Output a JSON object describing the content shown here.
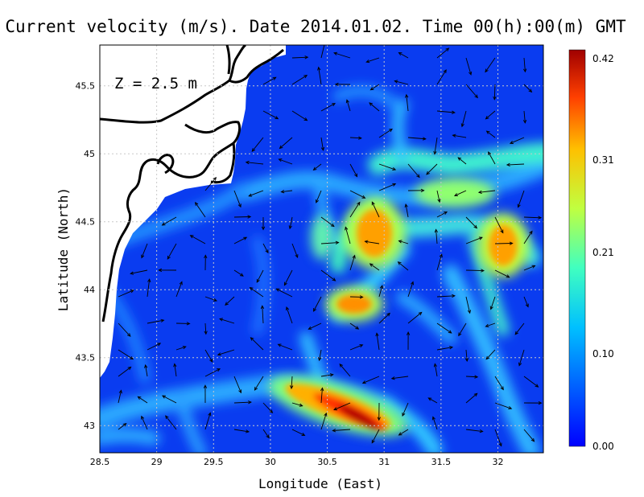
{
  "title": "Current velocity (m/s). Date 2014.01.02. Time 00(h):00(m) GMT",
  "depth_label": "Z = 2.5 m",
  "xlabel": "Longitude (East)",
  "ylabel": "Latitude (North)",
  "colors": {
    "land": "#ffffff",
    "coastline": "#000000",
    "grid": "#b0b0b0",
    "scale": [
      "#0000ff",
      "#0060ff",
      "#00c0ff",
      "#40ffc0",
      "#c0ff40",
      "#ffc000",
      "#ff4000",
      "#a00000"
    ]
  },
  "chart_data": {
    "type": "heatmap",
    "title": "Current velocity (m/s). Date 2014.01.02. Time 00(h):00(m) GMT",
    "xlabel": "Longitude (East)",
    "ylabel": "Latitude (North)",
    "xlim": [
      28.5,
      32.4
    ],
    "ylim": [
      42.8,
      45.8
    ],
    "xticks": [
      "28.5",
      "29",
      "29.5",
      "30",
      "30.5",
      "31",
      "31.5",
      "32"
    ],
    "yticks": [
      "43",
      "43.5",
      "44",
      "44.5",
      "45",
      "45.5"
    ],
    "grid": true,
    "colorbar": {
      "label": "m/s",
      "range": [
        0.0,
        0.42
      ],
      "ticks": [
        "0.00",
        "0.10",
        "0.21",
        "0.31",
        "0.42"
      ]
    },
    "speed_features": [
      {
        "lon": 30.85,
        "lat": 43.05,
        "speed": 0.42
      },
      {
        "lon": 30.55,
        "lat": 43.2,
        "speed": 0.38
      },
      {
        "lon": 30.75,
        "lat": 44.5,
        "speed": 0.33
      },
      {
        "lon": 30.65,
        "lat": 43.9,
        "speed": 0.33
      },
      {
        "lon": 32.05,
        "lat": 44.3,
        "speed": 0.3
      },
      {
        "lon": 31.6,
        "lat": 44.6,
        "speed": 0.22
      },
      {
        "lon": 30.15,
        "lat": 44.25,
        "speed": 0.2
      },
      {
        "lon": 29.7,
        "lat": 44.6,
        "speed": 0.2
      },
      {
        "lon": 29.2,
        "lat": 43.05,
        "speed": 0.18
      },
      {
        "lon": 30.9,
        "lat": 45.2,
        "speed": 0.16
      },
      {
        "lon": 32.2,
        "lat": 43.4,
        "speed": 0.15
      },
      {
        "lon": 31.3,
        "lat": 43.6,
        "speed": 0.14
      }
    ]
  }
}
